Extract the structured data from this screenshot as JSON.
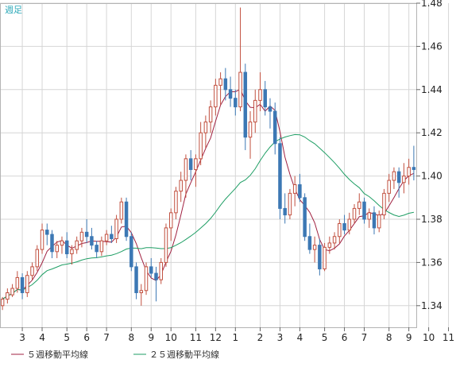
{
  "period_label": "週足",
  "colors": {
    "up_candle": "#c1503f",
    "down_candle": "#3c78b4",
    "ma5": "#a02040",
    "ma25": "#1e9e64",
    "grid": "#d6d6d6",
    "border": "#b4b4b4",
    "period": "#2aa8b8"
  },
  "chart_data": {
    "type": "candlestick",
    "title": "",
    "ylim": [
      1.33,
      1.48
    ],
    "y_ticks": [
      "1.34",
      "1.36",
      "1.38",
      "1.40",
      "1.42",
      "1.44",
      "1.46",
      "1.48"
    ],
    "x_ticks": [
      {
        "label": "3",
        "week": 4
      },
      {
        "label": "4",
        "week": 8
      },
      {
        "label": "5",
        "week": 13
      },
      {
        "label": "6",
        "week": 17
      },
      {
        "label": "7",
        "week": 21
      },
      {
        "label": "8",
        "week": 26
      },
      {
        "label": "9",
        "week": 30
      },
      {
        "label": "10",
        "week": 34
      },
      {
        "label": "11",
        "week": 39
      },
      {
        "label": "12",
        "week": 43
      },
      {
        "label": "1",
        "week": 47
      },
      {
        "label": "2",
        "week": 52
      },
      {
        "label": "3",
        "week": 56
      },
      {
        "label": "4",
        "week": 60
      },
      {
        "label": "5",
        "week": 65
      },
      {
        "label": "6",
        "week": 69
      },
      {
        "label": "7",
        "week": 73
      },
      {
        "label": "8",
        "week": 78
      },
      {
        "label": "9",
        "week": 82
      },
      {
        "label": "10",
        "week": 86
      },
      {
        "label": "11",
        "week": 90
      }
    ],
    "ohlc": [
      [
        1.34,
        1.344,
        1.338,
        1.343
      ],
      [
        1.343,
        1.348,
        1.341,
        1.346
      ],
      [
        1.345,
        1.35,
        1.344,
        1.348
      ],
      [
        1.348,
        1.356,
        1.346,
        1.353
      ],
      [
        1.353,
        1.355,
        1.343,
        1.346
      ],
      [
        1.346,
        1.356,
        1.344,
        1.354
      ],
      [
        1.354,
        1.36,
        1.352,
        1.358
      ],
      [
        1.358,
        1.368,
        1.356,
        1.366
      ],
      [
        1.366,
        1.378,
        1.364,
        1.375
      ],
      [
        1.375,
        1.378,
        1.368,
        1.373
      ],
      [
        1.373,
        1.375,
        1.362,
        1.365
      ],
      [
        1.365,
        1.37,
        1.362,
        1.368
      ],
      [
        1.368,
        1.372,
        1.364,
        1.37
      ],
      [
        1.37,
        1.374,
        1.362,
        1.364
      ],
      [
        1.364,
        1.368,
        1.359,
        1.366
      ],
      [
        1.366,
        1.372,
        1.364,
        1.37
      ],
      [
        1.37,
        1.376,
        1.367,
        1.374
      ],
      [
        1.374,
        1.38,
        1.369,
        1.372
      ],
      [
        1.372,
        1.376,
        1.366,
        1.368
      ],
      [
        1.368,
        1.37,
        1.362,
        1.365
      ],
      [
        1.365,
        1.372,
        1.363,
        1.37
      ],
      [
        1.37,
        1.375,
        1.368,
        1.373
      ],
      [
        1.373,
        1.377,
        1.369,
        1.371
      ],
      [
        1.371,
        1.382,
        1.369,
        1.38
      ],
      [
        1.38,
        1.39,
        1.378,
        1.388
      ],
      [
        1.388,
        1.39,
        1.37,
        1.372
      ],
      [
        1.372,
        1.374,
        1.356,
        1.358
      ],
      [
        1.358,
        1.36,
        1.343,
        1.346
      ],
      [
        1.346,
        1.35,
        1.34,
        1.347
      ],
      [
        1.347,
        1.36,
        1.345,
        1.358
      ],
      [
        1.358,
        1.362,
        1.353,
        1.355
      ],
      [
        1.355,
        1.358,
        1.342,
        1.352
      ],
      [
        1.352,
        1.362,
        1.35,
        1.36
      ],
      [
        1.36,
        1.378,
        1.358,
        1.376
      ],
      [
        1.376,
        1.385,
        1.37,
        1.383
      ],
      [
        1.383,
        1.395,
        1.38,
        1.393
      ],
      [
        1.393,
        1.402,
        1.388,
        1.398
      ],
      [
        1.398,
        1.41,
        1.39,
        1.408
      ],
      [
        1.408,
        1.412,
        1.398,
        1.403
      ],
      [
        1.403,
        1.41,
        1.395,
        1.408
      ],
      [
        1.408,
        1.425,
        1.405,
        1.42
      ],
      [
        1.42,
        1.428,
        1.413,
        1.425
      ],
      [
        1.425,
        1.435,
        1.42,
        1.432
      ],
      [
        1.432,
        1.445,
        1.428,
        1.442
      ],
      [
        1.442,
        1.448,
        1.433,
        1.445
      ],
      [
        1.445,
        1.45,
        1.435,
        1.44
      ],
      [
        1.44,
        1.446,
        1.432,
        1.436
      ],
      [
        1.436,
        1.44,
        1.428,
        1.432
      ],
      [
        1.432,
        1.478,
        1.43,
        1.448
      ],
      [
        1.448,
        1.452,
        1.412,
        1.418
      ],
      [
        1.418,
        1.43,
        1.408,
        1.425
      ],
      [
        1.425,
        1.44,
        1.42,
        1.435
      ],
      [
        1.435,
        1.448,
        1.43,
        1.44
      ],
      [
        1.44,
        1.444,
        1.428,
        1.432
      ],
      [
        1.432,
        1.436,
        1.422,
        1.43
      ],
      [
        1.43,
        1.434,
        1.41,
        1.415
      ],
      [
        1.415,
        1.418,
        1.38,
        1.385
      ],
      [
        1.385,
        1.392,
        1.378,
        1.382
      ],
      [
        1.382,
        1.394,
        1.38,
        1.392
      ],
      [
        1.392,
        1.4,
        1.386,
        1.396
      ],
      [
        1.396,
        1.401,
        1.388,
        1.39
      ],
      [
        1.39,
        1.392,
        1.37,
        1.372
      ],
      [
        1.372,
        1.378,
        1.364,
        1.366
      ],
      [
        1.366,
        1.372,
        1.36,
        1.368
      ],
      [
        1.368,
        1.371,
        1.354,
        1.357
      ],
      [
        1.357,
        1.369,
        1.356,
        1.367
      ],
      [
        1.367,
        1.372,
        1.364,
        1.369
      ],
      [
        1.369,
        1.374,
        1.366,
        1.372
      ],
      [
        1.372,
        1.38,
        1.369,
        1.378
      ],
      [
        1.378,
        1.382,
        1.373,
        1.375
      ],
      [
        1.375,
        1.383,
        1.373,
        1.38
      ],
      [
        1.38,
        1.387,
        1.378,
        1.385
      ],
      [
        1.385,
        1.392,
        1.382,
        1.388
      ],
      [
        1.388,
        1.39,
        1.378,
        1.38
      ],
      [
        1.38,
        1.385,
        1.376,
        1.383
      ],
      [
        1.383,
        1.386,
        1.373,
        1.376
      ],
      [
        1.376,
        1.384,
        1.374,
        1.382
      ],
      [
        1.382,
        1.394,
        1.38,
        1.392
      ],
      [
        1.392,
        1.401,
        1.388,
        1.398
      ],
      [
        1.398,
        1.404,
        1.394,
        1.402
      ],
      [
        1.402,
        1.404,
        1.39,
        1.397
      ],
      [
        1.397,
        1.406,
        1.392,
        1.4
      ],
      [
        1.4,
        1.408,
        1.396,
        1.404
      ],
      [
        1.404,
        1.414,
        1.398,
        1.403
      ]
    ],
    "series": [
      {
        "name": "５週移動平均線",
        "color": "#a02040",
        "type": "sma",
        "period": 5
      },
      {
        "name": "２５週移動平均線",
        "color": "#1e9e64",
        "type": "sma",
        "period": 25
      }
    ]
  }
}
